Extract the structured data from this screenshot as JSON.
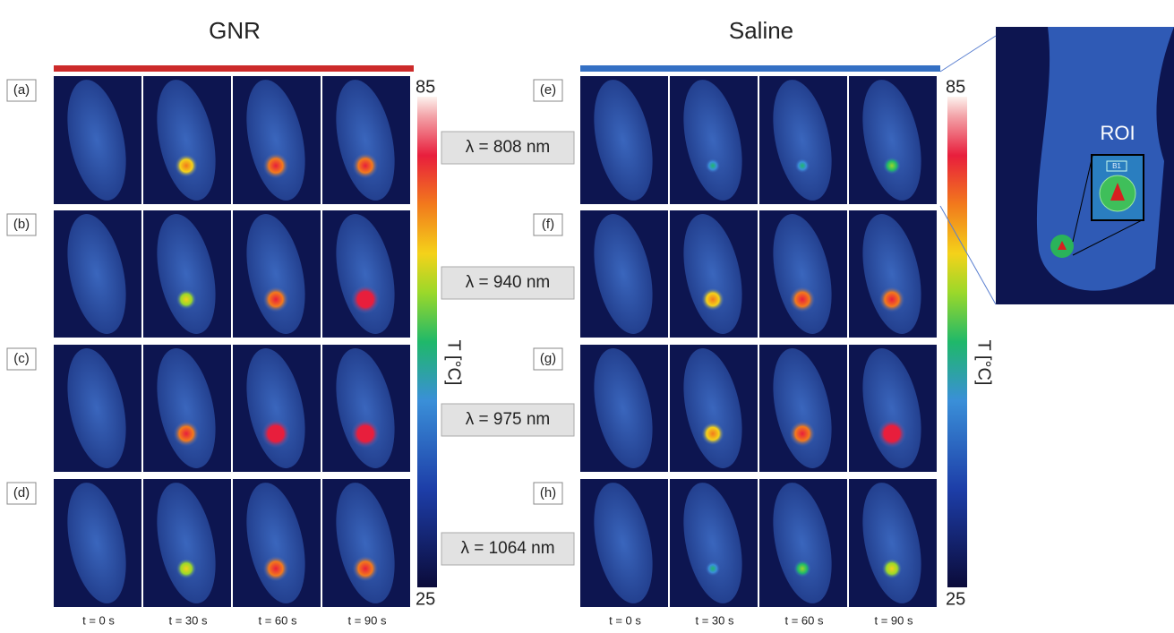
{
  "groups": [
    {
      "title": "GNR",
      "panels": [
        "(a)",
        "(b)",
        "(c)",
        "(d)"
      ],
      "times": [
        "t = 0 s",
        "t = 30 s",
        "t = 60 s",
        "t = 90 s"
      ]
    },
    {
      "title": "Saline",
      "panels": [
        "(e)",
        "(f)",
        "(g)",
        "(h)"
      ],
      "times": [
        "t = 0 s",
        "t = 30 s",
        "t = 60 s",
        "t = 90 s"
      ]
    }
  ],
  "wavelengths": [
    "λ = 808 nm",
    "λ = 940 nm",
    "λ = 975 nm",
    "λ = 1064 nm"
  ],
  "colorbars": [
    {
      "max": 85,
      "min": 25,
      "label": "T [°C]"
    },
    {
      "max": 85,
      "min": 25,
      "label": "T [°C]"
    }
  ],
  "inset": {
    "label": "ROI",
    "marker": "B1"
  }
}
